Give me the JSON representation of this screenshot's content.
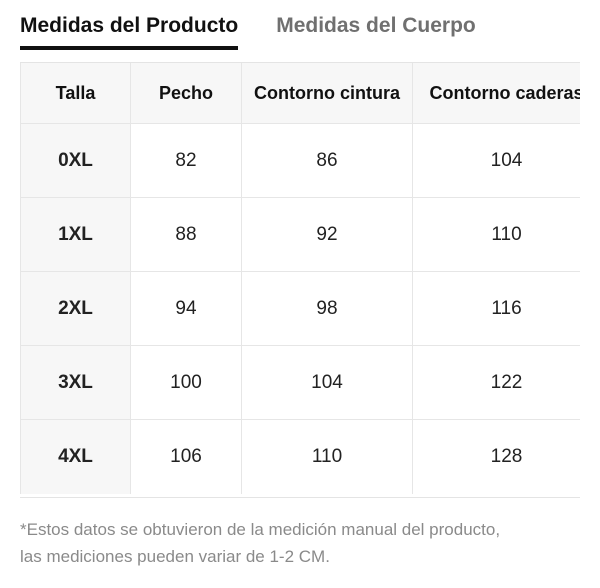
{
  "tabs": [
    {
      "label": "Medidas del Producto",
      "active": true
    },
    {
      "label": "Medidas del Cuerpo",
      "active": false
    }
  ],
  "table": {
    "headers": [
      "Talla",
      "Pecho",
      "Contorno cintura",
      "Contorno caderas"
    ],
    "rows": [
      [
        "0XL",
        "82",
        "86",
        "104"
      ],
      [
        "1XL",
        "88",
        "92",
        "110"
      ],
      [
        "2XL",
        "94",
        "98",
        "116"
      ],
      [
        "3XL",
        "100",
        "104",
        "122"
      ],
      [
        "4XL",
        "106",
        "110",
        "128"
      ]
    ]
  },
  "note": {
    "line1": "*Estos datos se obtuvieron de la medición manual del producto,",
    "line2": "las mediciones pueden variar de 1-2 CM."
  }
}
